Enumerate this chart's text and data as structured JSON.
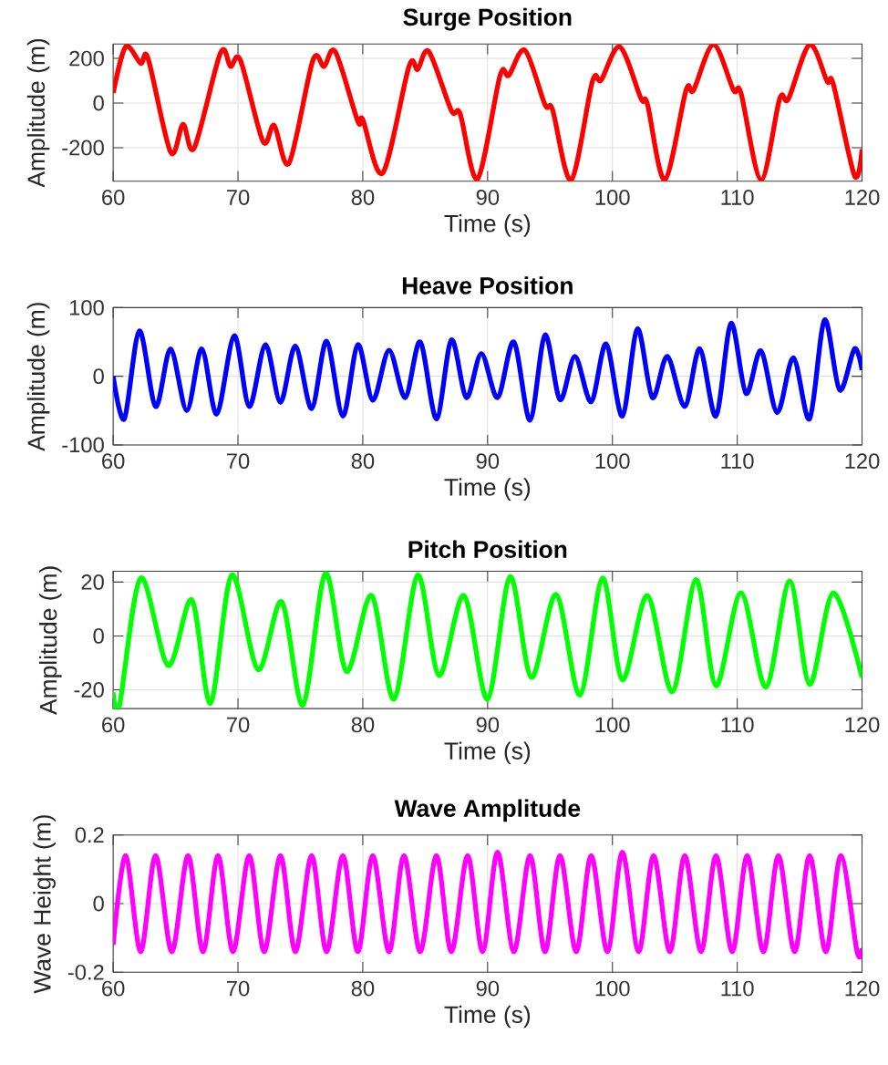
{
  "chart_data": [
    {
      "type": "line",
      "title": "Surge Position",
      "xlabel": "Time (s)",
      "ylabel": "Amplitude (m)",
      "xlim": [
        60,
        120
      ],
      "ylim": [
        -350,
        265
      ],
      "xticks": [
        60,
        70,
        80,
        90,
        100,
        110,
        120
      ],
      "yticks": [
        -200,
        0,
        200
      ],
      "grid": true,
      "x": [
        60,
        61,
        62.2,
        62.8,
        64.6,
        65.6,
        66.5,
        68.6,
        69.4,
        70.2,
        72.0,
        72.9,
        74.1,
        76.0,
        76.9,
        77.8,
        79.6,
        80.0,
        81.6,
        83.7,
        84.4,
        85.3,
        87.1,
        87.8,
        89.2,
        91.0,
        91.7,
        93.0,
        94.6,
        95.2,
        96.7,
        98.4,
        99.1,
        100.6,
        102.3,
        102.8,
        104.2,
        105.9,
        106.5,
        108.1,
        109.7,
        110.3,
        111.9,
        113.4,
        114.1,
        115.8,
        117.2,
        117.7,
        119.4,
        120
      ],
      "series": [
        {
          "color": "#ff0000",
          "values": [
            45,
            252,
            178,
            199,
            -220,
            -95,
            -200,
            225,
            164,
            191,
            -172,
            -100,
            -268,
            191,
            164,
            230,
            -82,
            -74,
            -313,
            164,
            151,
            230,
            -34,
            -48,
            -339,
            124,
            124,
            236,
            -8,
            -29,
            -344,
            98,
            103,
            252,
            19,
            -3,
            -344,
            58,
            58,
            262,
            58,
            45,
            -344,
            19,
            19,
            262,
            98,
            85,
            -326,
            -207
          ]
        }
      ]
    },
    {
      "type": "line",
      "title": "Heave Position",
      "xlabel": "Time (s)",
      "ylabel": "Amplitude (m)",
      "xlim": [
        60,
        120
      ],
      "ylim": [
        -100,
        100
      ],
      "xticks": [
        60,
        70,
        80,
        90,
        100,
        110,
        120
      ],
      "yticks": [
        -100,
        0,
        100
      ],
      "grid": true,
      "x": [
        60,
        60.9,
        62.1,
        63.4,
        64.6,
        65.9,
        67.1,
        68.3,
        69.7,
        70.9,
        72.2,
        73.4,
        74.6,
        75.9,
        77.1,
        78.4,
        79.6,
        80.8,
        82.1,
        83.4,
        84.6,
        85.9,
        87.1,
        88.3,
        89.5,
        90.8,
        92.1,
        93.4,
        94.6,
        95.8,
        97.0,
        98.3,
        99.5,
        100.8,
        102.0,
        103.2,
        104.4,
        105.8,
        107.0,
        108.3,
        109.5,
        110.7,
        111.9,
        113.2,
        114.5,
        115.8,
        117.0,
        118.2,
        119.4,
        120
      ],
      "series": [
        {
          "color": "#0000ff",
          "values": [
            0,
            -62,
            66,
            -44,
            40,
            -50,
            40,
            -55,
            59,
            -44,
            46,
            -38,
            44,
            -47,
            51,
            -58,
            46,
            -35,
            38,
            -31,
            50,
            -62,
            53,
            -31,
            33,
            -31,
            50,
            -64,
            60,
            -34,
            29,
            -37,
            47,
            -58,
            69,
            -31,
            29,
            -44,
            40,
            -58,
            77,
            -25,
            37,
            -53,
            27,
            -62,
            82,
            -20,
            40,
            9
          ]
        }
      ]
    },
    {
      "type": "line",
      "title": "Pitch Position",
      "xlabel": "Time (s)",
      "ylabel": "Amplitude (m)",
      "xlim": [
        60,
        120
      ],
      "ylim": [
        -27,
        24
      ],
      "xticks": [
        60,
        70,
        80,
        90,
        100,
        110,
        120
      ],
      "yticks": [
        -20,
        0,
        20
      ],
      "grid": true,
      "x": [
        60,
        60.5,
        62.2,
        64.4,
        66.3,
        67.8,
        69.5,
        71.6,
        73.5,
        75.2,
        77.0,
        78.7,
        80.7,
        82.5,
        84.4,
        86.1,
        88.1,
        90.0,
        91.8,
        93.5,
        95.5,
        97.4,
        99.2,
        100.8,
        102.8,
        104.8,
        106.7,
        108.3,
        110.3,
        112.3,
        114.2,
        115.8,
        117.7,
        120
      ],
      "series": [
        {
          "color": "#00ff00",
          "values": [
            -21,
            -26,
            21.5,
            -11,
            13.4,
            -25,
            22.6,
            -12.5,
            12.7,
            -25.7,
            23.3,
            -13.2,
            15,
            -23.5,
            22.6,
            -14.7,
            15,
            -23.5,
            22,
            -15.4,
            15.4,
            -22,
            21.5,
            -16.3,
            15,
            -20.7,
            20.9,
            -18.5,
            16,
            -19,
            20.4,
            -18,
            16,
            -15.5
          ]
        }
      ]
    },
    {
      "type": "line",
      "title": "Wave Amplitude",
      "xlabel": "Time (s)",
      "ylabel": "Wave Height (m)",
      "xlim": [
        60,
        120
      ],
      "ylim": [
        -0.2,
        0.2
      ],
      "xticks": [
        60,
        70,
        80,
        90,
        100,
        110,
        120
      ],
      "yticks": [
        -0.2,
        0,
        0.2
      ],
      "grid": true,
      "x": [
        60,
        61.0,
        62.2,
        63.4,
        64.7,
        66.0,
        67.2,
        68.4,
        69.6,
        70.9,
        72.1,
        73.4,
        74.6,
        75.9,
        77.1,
        78.4,
        79.6,
        80.8,
        82.1,
        83.3,
        84.6,
        85.9,
        87.1,
        88.4,
        89.6,
        90.8,
        92.1,
        93.4,
        94.6,
        95.8,
        97.1,
        98.3,
        99.6,
        100.8,
        102.1,
        103.3,
        104.6,
        105.8,
        107.1,
        108.3,
        109.6,
        110.8,
        112.1,
        113.3,
        114.6,
        115.8,
        117.1,
        118.3,
        119.6,
        120
      ],
      "series": [
        {
          "color": "#ff00ff",
          "values": [
            -0.12,
            0.14,
            -0.14,
            0.14,
            -0.14,
            0.14,
            -0.14,
            0.14,
            -0.14,
            0.14,
            -0.14,
            0.14,
            -0.14,
            0.14,
            -0.14,
            0.14,
            -0.14,
            0.14,
            -0.14,
            0.14,
            -0.14,
            0.14,
            -0.14,
            0.14,
            -0.14,
            0.15,
            -0.14,
            0.14,
            -0.14,
            0.14,
            -0.14,
            0.14,
            -0.14,
            0.15,
            -0.14,
            0.14,
            -0.14,
            0.14,
            -0.14,
            0.14,
            -0.14,
            0.14,
            -0.14,
            0.14,
            -0.14,
            0.14,
            -0.14,
            0.14,
            -0.14,
            -0.13
          ]
        }
      ]
    }
  ]
}
